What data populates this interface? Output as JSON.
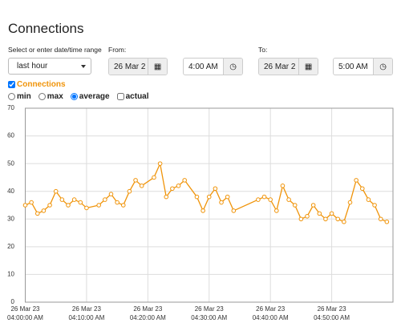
{
  "header": {
    "title": "Connections"
  },
  "controls": {
    "range_label": "Select or enter date/time range",
    "range": "last hour",
    "from": {
      "label": "From:",
      "date": "26 Mar 2",
      "time": "4:00 AM"
    },
    "to": {
      "label": "To:",
      "date": "26 Mar 2",
      "time": "5:00 AM"
    },
    "options": [
      {
        "label": "min",
        "kind": "radio",
        "checked": false
      },
      {
        "label": "max",
        "kind": "radio",
        "checked": false
      },
      {
        "label": "average",
        "kind": "radio",
        "checked": true
      },
      {
        "label": "actual",
        "kind": "checkbox",
        "checked": false
      }
    ]
  },
  "chart_data": {
    "type": "line",
    "grid": true,
    "series_checked": true,
    "xlim": [
      0,
      60
    ],
    "xticks": [
      {
        "value": 0,
        "label": "26 Mar 23\n04:00:00 AM"
      },
      {
        "value": 10,
        "label": "26 Mar 23\n04:10:00 AM"
      },
      {
        "value": 20,
        "label": "26 Mar 23\n04:20:00 AM"
      },
      {
        "value": 30,
        "label": "26 Mar 23\n04:30:00 AM"
      },
      {
        "value": 40,
        "label": "26 Mar 23\n04:40:00 AM"
      },
      {
        "value": 50,
        "label": "26 Mar 23\n04:50:00 AM"
      }
    ],
    "ylim": [
      0,
      70
    ],
    "yticks": [
      0,
      10,
      20,
      30,
      40,
      50,
      60,
      70
    ],
    "x": [
      0,
      1,
      2,
      3,
      4,
      5,
      6,
      7,
      8,
      9,
      10,
      12,
      13,
      14,
      15,
      16,
      17,
      18,
      19,
      21,
      22,
      23,
      24,
      25,
      26,
      28,
      29,
      30,
      31,
      32,
      33,
      34,
      38,
      39,
      40,
      41,
      42,
      43,
      44,
      45,
      46,
      47,
      48,
      49,
      50,
      51,
      52,
      53,
      54,
      55,
      56,
      57,
      58,
      59
    ],
    "series": [
      {
        "name": "Connections",
        "color": "#f0940a",
        "values": [
          35,
          36,
          32,
          33,
          35,
          40,
          37,
          35,
          37,
          36,
          34,
          35,
          37,
          39,
          36,
          35,
          40,
          44,
          42,
          45,
          50,
          38,
          41,
          42,
          44,
          38,
          33,
          38,
          41,
          36,
          38,
          33,
          37,
          38,
          37,
          33,
          42,
          37,
          35,
          30,
          31,
          35,
          32,
          30,
          32,
          30,
          29,
          36,
          44,
          41,
          37,
          35,
          30,
          29
        ]
      }
    ]
  }
}
